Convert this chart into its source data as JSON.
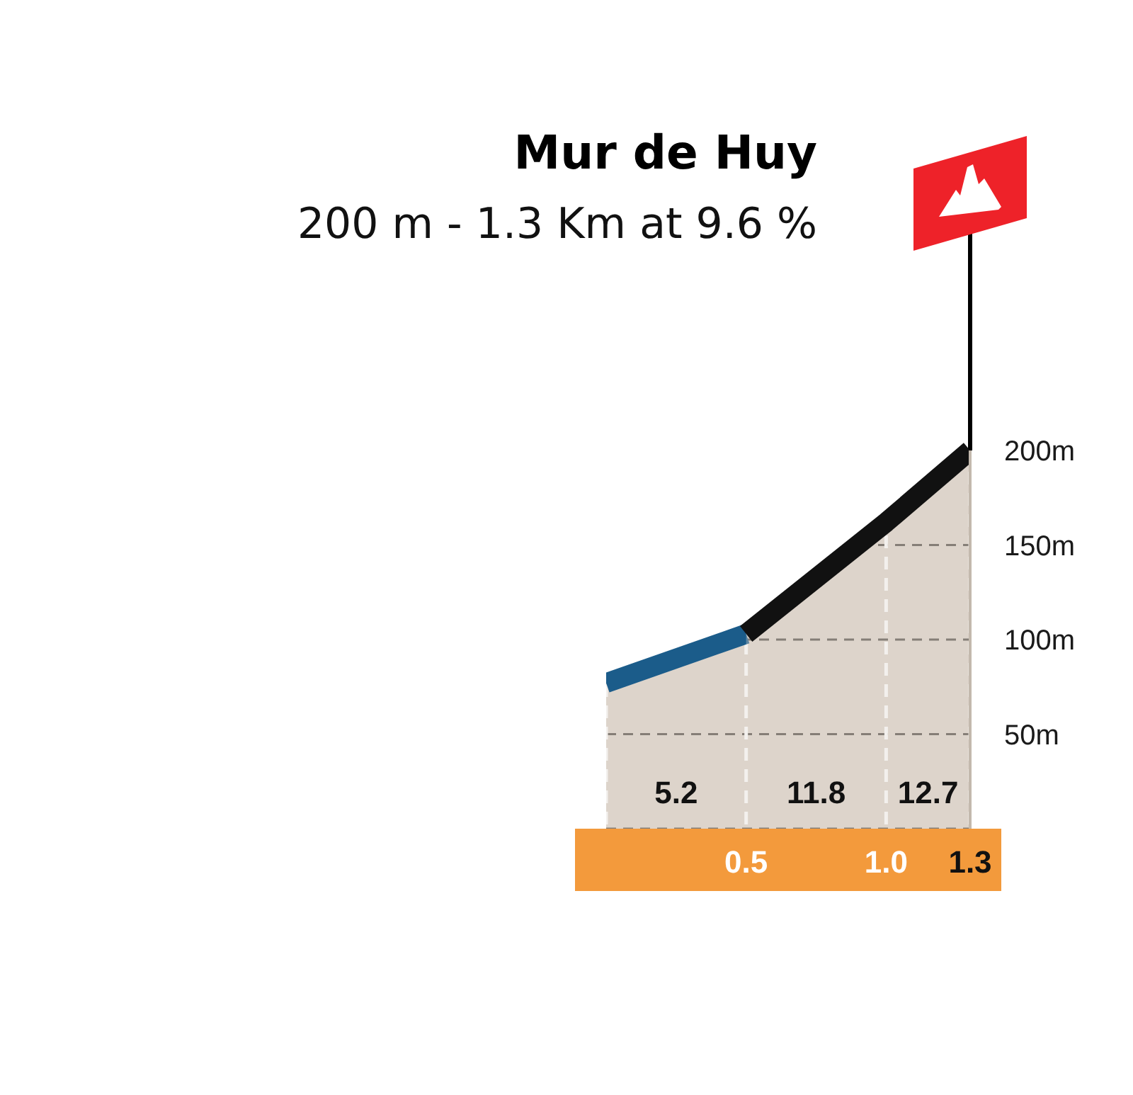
{
  "chart_data": {
    "type": "area",
    "title": "Mur de Huy",
    "subtitle": "200 m - 1.3 Km at 9.6 %",
    "xlim": [
      0,
      1.3
    ],
    "xticks": [
      0.5,
      {
        "value": 1.0,
        "label": "1.0"
      },
      1.3
    ],
    "ylim": [
      0,
      200
    ],
    "yticks": [
      {
        "value": 50,
        "label": "50m"
      },
      {
        "value": 100,
        "label": "100m"
      },
      {
        "value": 150,
        "label": "150m"
      },
      {
        "value": 200,
        "label": "200m"
      }
    ],
    "grid": true,
    "series": [
      {
        "color": "#1b5c8a",
        "x": [
          0,
          0.5
        ],
        "values": [
          77,
          103
        ]
      },
      {
        "color": "#111111",
        "x": [
          0.5,
          1.0,
          1.3
        ],
        "values": [
          103,
          162,
          200
        ]
      }
    ],
    "annotations": [
      "5.2",
      "11.8",
      "12.7"
    ]
  }
}
